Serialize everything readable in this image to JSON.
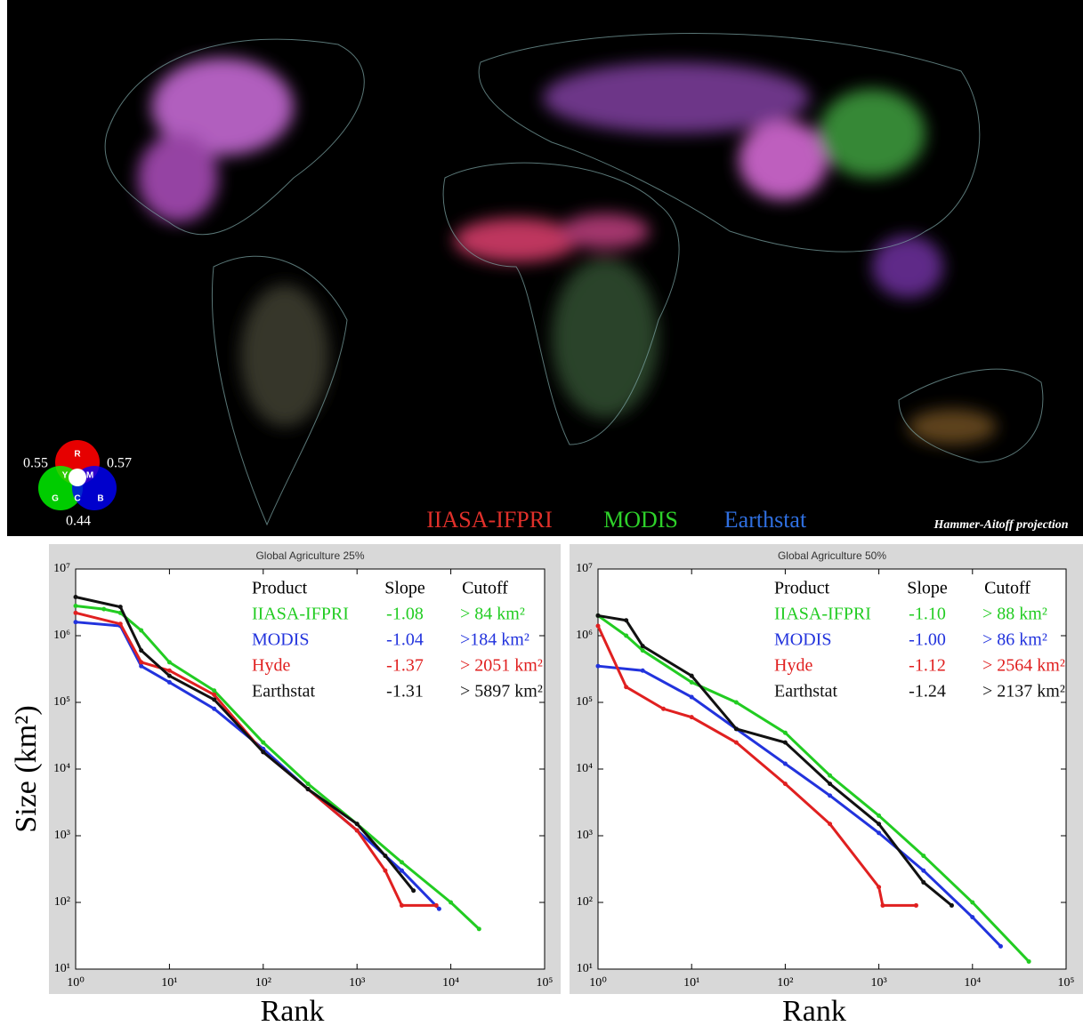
{
  "map": {
    "scale_labels": [
      "0.55",
      "0.57",
      "0.44"
    ],
    "channels": [
      "R",
      "Y",
      "M",
      "G",
      "C",
      "B"
    ],
    "legend": [
      {
        "name": "IIASA-IFPRI",
        "color": "#e0302a"
      },
      {
        "name": "MODIS",
        "color": "#2ed12a"
      },
      {
        "name": "Earthstat",
        "color": "#2f6fe0"
      }
    ],
    "projection": "Hammer-Aitoff projection"
  },
  "chart_data": [
    {
      "type": "line",
      "title": "Global Agriculture 25%",
      "x_label": "Rank",
      "y_label": "Size (km²)",
      "log_x": true,
      "log_y": true,
      "xlim": [
        1,
        100000
      ],
      "ylim": [
        10,
        10000000
      ],
      "xticks": [
        {
          "value": 1,
          "label": "10⁰"
        },
        {
          "value": 10,
          "label": "10¹"
        },
        {
          "value": 100,
          "label": "10²"
        },
        {
          "value": 1000,
          "label": "10³"
        },
        {
          "value": 10000,
          "label": "10⁴"
        },
        {
          "value": 100000,
          "label": "10⁵"
        }
      ],
      "yticks": [
        {
          "value": 10,
          "label": "10¹"
        },
        {
          "value": 100,
          "label": "10²"
        },
        {
          "value": 1000,
          "label": "10³"
        },
        {
          "value": 10000,
          "label": "10⁴"
        },
        {
          "value": 100000,
          "label": "10⁵"
        },
        {
          "value": 1000000,
          "label": "10⁶"
        },
        {
          "value": 10000000,
          "label": "10⁷"
        }
      ],
      "table_headers": [
        "Product",
        "Slope",
        "Cutoff"
      ],
      "series": [
        {
          "name": "IIASA-IFPRI",
          "color": "#22cc22",
          "slope": "-1.08",
          "cutoff": "> 84 km²",
          "x": [
            1,
            2,
            3,
            5,
            10,
            30,
            100,
            300,
            1000,
            3000,
            10000,
            20000
          ],
          "values": [
            2800000,
            2500000,
            2200000,
            1200000,
            400000,
            150000,
            25000,
            6000,
            1500,
            400,
            100,
            40
          ]
        },
        {
          "name": "MODIS",
          "color": "#2233dd",
          "slope": "-1.04",
          "cutoff": ">184 km²",
          "x": [
            1,
            3,
            5,
            10,
            30,
            100,
            300,
            1000,
            3000,
            7500
          ],
          "values": [
            1600000,
            1400000,
            350000,
            200000,
            80000,
            20000,
            5000,
            1200,
            300,
            80
          ]
        },
        {
          "name": "Hyde",
          "color": "#e02020",
          "slope": "-1.37",
          "cutoff": "> 2051 km²",
          "x": [
            1,
            3,
            5,
            10,
            30,
            100,
            300,
            1000,
            2000,
            3000,
            7000
          ],
          "values": [
            2200000,
            1500000,
            400000,
            300000,
            130000,
            18000,
            5000,
            1200,
            300,
            90,
            90
          ]
        },
        {
          "name": "Earthstat",
          "color": "#111111",
          "slope": "-1.31",
          "cutoff": "> 5897 km²",
          "x": [
            1,
            3,
            5,
            10,
            30,
            100,
            300,
            1000,
            2000,
            4000
          ],
          "values": [
            3800000,
            2700000,
            600000,
            250000,
            110000,
            18000,
            5000,
            1500,
            500,
            150
          ]
        }
      ]
    },
    {
      "type": "line",
      "title": "Global Agriculture 50%",
      "x_label": "Rank",
      "log_x": true,
      "log_y": true,
      "xlim": [
        1,
        100000
      ],
      "ylim": [
        10,
        10000000
      ],
      "xticks": [
        {
          "value": 1,
          "label": "10⁰"
        },
        {
          "value": 10,
          "label": "10¹"
        },
        {
          "value": 100,
          "label": "10²"
        },
        {
          "value": 1000,
          "label": "10³"
        },
        {
          "value": 10000,
          "label": "10⁴"
        },
        {
          "value": 100000,
          "label": "10⁵"
        }
      ],
      "yticks": [
        {
          "value": 10,
          "label": "10¹"
        },
        {
          "value": 100,
          "label": "10²"
        },
        {
          "value": 1000,
          "label": "10³"
        },
        {
          "value": 10000,
          "label": "10⁴"
        },
        {
          "value": 100000,
          "label": "10⁵"
        },
        {
          "value": 1000000,
          "label": "10⁶"
        },
        {
          "value": 10000000,
          "label": "10⁷"
        }
      ],
      "table_headers": [
        "Product",
        "Slope",
        "Cutoff"
      ],
      "series": [
        {
          "name": "IIASA-IFPRI",
          "color": "#22cc22",
          "slope": "-1.10",
          "cutoff": "> 88 km²",
          "x": [
            1,
            2,
            3,
            10,
            30,
            100,
            300,
            1000,
            3000,
            10000,
            40000
          ],
          "values": [
            2000000,
            1000000,
            600000,
            200000,
            100000,
            35000,
            8000,
            2000,
            500,
            100,
            13
          ]
        },
        {
          "name": "MODIS",
          "color": "#2233dd",
          "slope": "-1.00",
          "cutoff": "> 86 km²",
          "x": [
            1,
            3,
            10,
            30,
            100,
            300,
            1000,
            3000,
            10000,
            20000
          ],
          "values": [
            350000,
            300000,
            120000,
            40000,
            12000,
            4000,
            1100,
            300,
            60,
            22
          ]
        },
        {
          "name": "Hyde",
          "color": "#e02020",
          "slope": "-1.12",
          "cutoff": "> 2564 km²",
          "x": [
            1,
            2,
            5,
            10,
            30,
            100,
            300,
            1000,
            1100,
            2500
          ],
          "values": [
            1400000,
            170000,
            80000,
            60000,
            25000,
            6000,
            1500,
            170,
            90,
            90
          ]
        },
        {
          "name": "Earthstat",
          "color": "#111111",
          "slope": "-1.24",
          "cutoff": "> 2137 km²",
          "x": [
            1,
            2,
            3,
            10,
            30,
            100,
            300,
            1000,
            3000,
            6000
          ],
          "values": [
            2000000,
            1700000,
            700000,
            250000,
            40000,
            25000,
            6000,
            1500,
            200,
            90
          ]
        }
      ]
    }
  ]
}
